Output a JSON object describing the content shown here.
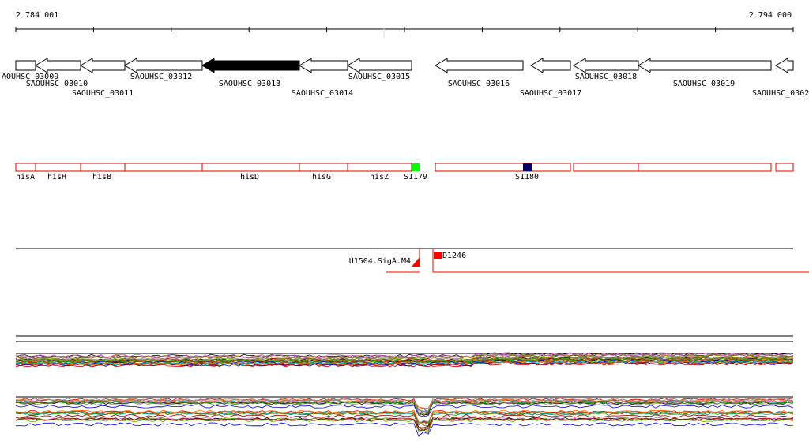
{
  "scale": {
    "start": "2 784 001",
    "end": "2 794 000"
  },
  "genes": [
    "AOUHSC_03009",
    "SAOUHSC_03010",
    "SAOUHSC_03011",
    "SAOUHSC_03012",
    "SAOUHSC_03013",
    "SAOUHSC_03014",
    "SAOUHSC_03015",
    "SAOUHSC_03016",
    "SAOUHSC_03017",
    "SAOUHSC_03018",
    "SAOUHSC_03019",
    "SAOUHSC_0302"
  ],
  "operons": [
    "hisA",
    "hisH",
    "hisB",
    "hisD",
    "hisG",
    "hisZ",
    "S1179",
    "S1180"
  ],
  "features": [
    "U1504.SigA.M4",
    "D1246"
  ]
}
